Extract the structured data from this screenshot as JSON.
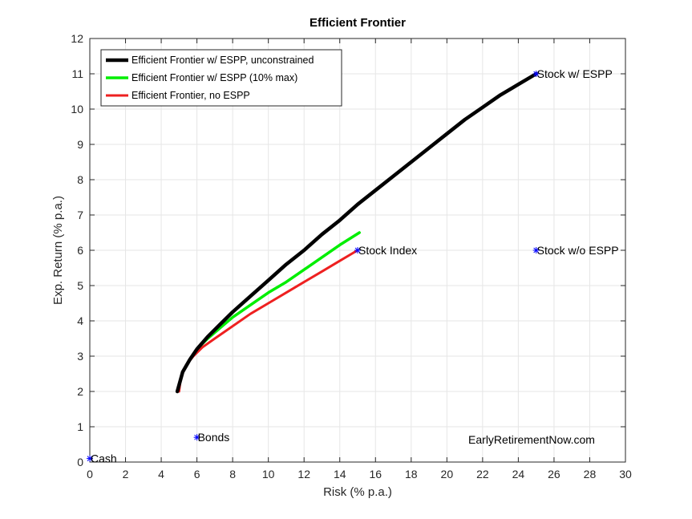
{
  "chart_data": {
    "type": "line",
    "title": "Efficient Frontier",
    "xlabel": "Risk (% p.a.)",
    "ylabel": "Exp. Return (% p.a.)",
    "xlim": [
      0,
      30
    ],
    "ylim": [
      0,
      12
    ],
    "xticks": [
      0,
      2,
      4,
      6,
      8,
      10,
      12,
      14,
      16,
      18,
      20,
      22,
      24,
      26,
      28,
      30
    ],
    "yticks": [
      0,
      1,
      2,
      3,
      4,
      5,
      6,
      7,
      8,
      9,
      10,
      11,
      12
    ],
    "grid": true,
    "legend_position": "top-left",
    "series": [
      {
        "name": "Efficient Frontier w/ ESPP, unconstrained",
        "color": "#000000",
        "x": [
          4.9,
          5.2,
          5.6,
          6.0,
          6.6,
          7.3,
          8.0,
          9.0,
          10.0,
          11.0,
          12.0,
          13.0,
          14.0,
          15.0,
          16.0,
          17.0,
          18.0,
          19.0,
          20.0,
          21.0,
          22.0,
          23.0,
          24.0,
          25.0
        ],
        "y": [
          2.0,
          2.55,
          2.9,
          3.2,
          3.55,
          3.9,
          4.25,
          4.7,
          5.15,
          5.6,
          6.0,
          6.45,
          6.85,
          7.3,
          7.7,
          8.1,
          8.5,
          8.9,
          9.3,
          9.7,
          10.05,
          10.4,
          10.7,
          11.0
        ]
      },
      {
        "name": "Efficient Frontier w/ ESPP (10% max)",
        "color": "#00ee00",
        "x": [
          4.9,
          5.2,
          5.6,
          6.0,
          6.6,
          7.3,
          8.0,
          9.0,
          10.0,
          11.0,
          12.0,
          13.0,
          14.0,
          15.1
        ],
        "y": [
          2.0,
          2.55,
          2.9,
          3.2,
          3.5,
          3.8,
          4.1,
          4.45,
          4.8,
          5.1,
          5.45,
          5.8,
          6.15,
          6.5
        ]
      },
      {
        "name": "Efficient Frontier, no ESPP",
        "color": "#ee2020",
        "x": [
          5.0,
          5.1,
          5.4,
          5.8,
          6.3,
          7.0,
          8.0,
          9.0,
          10.0,
          11.0,
          12.0,
          13.0,
          14.0,
          15.0
        ],
        "y": [
          2.0,
          2.4,
          2.75,
          3.0,
          3.25,
          3.5,
          3.85,
          4.2,
          4.5,
          4.8,
          5.1,
          5.4,
          5.7,
          6.0
        ]
      }
    ],
    "points": [
      {
        "label": "Cash",
        "x": 0,
        "y": 0.1
      },
      {
        "label": "Bonds",
        "x": 6,
        "y": 0.7
      },
      {
        "label": "Stock Index",
        "x": 15,
        "y": 6
      },
      {
        "label": "Stock w/ ESPP",
        "x": 25,
        "y": 11
      },
      {
        "label": "Stock w/o ESPP",
        "x": 25,
        "y": 6
      }
    ],
    "point_marker_color": "#0000ff",
    "annotation": "EarlyRetirementNow.com"
  }
}
